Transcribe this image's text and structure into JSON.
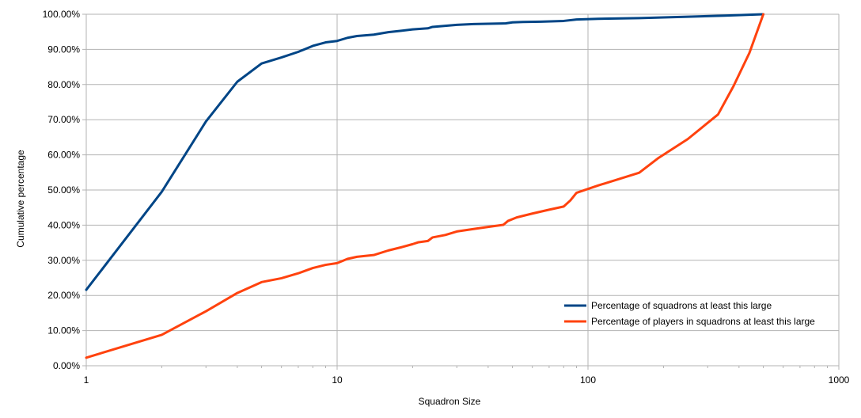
{
  "chart_data": {
    "type": "line",
    "title": "",
    "xlabel": "Squadron Size",
    "ylabel": "Cumulative percentage",
    "x_scale": "log",
    "xlim": [
      1,
      1000
    ],
    "ylim": [
      0,
      100
    ],
    "x_ticks": [
      1,
      10,
      100,
      1000
    ],
    "x_tick_labels": [
      "1",
      "10",
      "100",
      "1000"
    ],
    "y_ticks": [
      0,
      10,
      20,
      30,
      40,
      50,
      60,
      70,
      80,
      90,
      100
    ],
    "y_tick_labels": [
      "0.00%",
      "10.00%",
      "20.00%",
      "30.00%",
      "40.00%",
      "50.00%",
      "60.00%",
      "70.00%",
      "80.00%",
      "90.00%",
      "100.00%"
    ],
    "grid": true,
    "legend_position": "bottom-right",
    "series": [
      {
        "name": "Percentage of squadrons at least this large",
        "color": "#004586",
        "points": [
          [
            1,
            21.6
          ],
          [
            2,
            49.5
          ],
          [
            3,
            69.5
          ],
          [
            4,
            80.8
          ],
          [
            5,
            86.0
          ],
          [
            6,
            87.7
          ],
          [
            7,
            89.3
          ],
          [
            8,
            91.0
          ],
          [
            9,
            92.0
          ],
          [
            10,
            92.4
          ],
          [
            11,
            93.3
          ],
          [
            12,
            93.8
          ],
          [
            14,
            94.2
          ],
          [
            16,
            94.9
          ],
          [
            18,
            95.3
          ],
          [
            20,
            95.7
          ],
          [
            23,
            96.0
          ],
          [
            24,
            96.4
          ],
          [
            27,
            96.7
          ],
          [
            30,
            97.0
          ],
          [
            35,
            97.2
          ],
          [
            40,
            97.3
          ],
          [
            47,
            97.4
          ],
          [
            50,
            97.7
          ],
          [
            55,
            97.8
          ],
          [
            65,
            97.9
          ],
          [
            80,
            98.1
          ],
          [
            90,
            98.5
          ],
          [
            110,
            98.7
          ],
          [
            160,
            98.9
          ],
          [
            250,
            99.3
          ],
          [
            350,
            99.6
          ],
          [
            500,
            100.0
          ]
        ]
      },
      {
        "name": "Percentage of players in squadrons at least this large",
        "color": "#ff420e",
        "points": [
          [
            1,
            2.3
          ],
          [
            2,
            8.8
          ],
          [
            3,
            15.5
          ],
          [
            4,
            20.7
          ],
          [
            5,
            23.8
          ],
          [
            6,
            24.9
          ],
          [
            7,
            26.3
          ],
          [
            8,
            27.8
          ],
          [
            9,
            28.7
          ],
          [
            10,
            29.2
          ],
          [
            11,
            30.4
          ],
          [
            12,
            31.0
          ],
          [
            14,
            31.5
          ],
          [
            16,
            32.8
          ],
          [
            18,
            33.7
          ],
          [
            20,
            34.6
          ],
          [
            21,
            35.1
          ],
          [
            23,
            35.5
          ],
          [
            24,
            36.5
          ],
          [
            27,
            37.2
          ],
          [
            30,
            38.2
          ],
          [
            35,
            38.9
          ],
          [
            40,
            39.5
          ],
          [
            46,
            40.1
          ],
          [
            48,
            41.2
          ],
          [
            52,
            42.2
          ],
          [
            60,
            43.3
          ],
          [
            70,
            44.4
          ],
          [
            80,
            45.3
          ],
          [
            85,
            47.0
          ],
          [
            90,
            49.2
          ],
          [
            110,
            51.3
          ],
          [
            160,
            54.9
          ],
          [
            190,
            59.0
          ],
          [
            250,
            64.5
          ],
          [
            330,
            71.5
          ],
          [
            380,
            79.5
          ],
          [
            440,
            89.0
          ],
          [
            500,
            100.0
          ]
        ]
      }
    ]
  }
}
